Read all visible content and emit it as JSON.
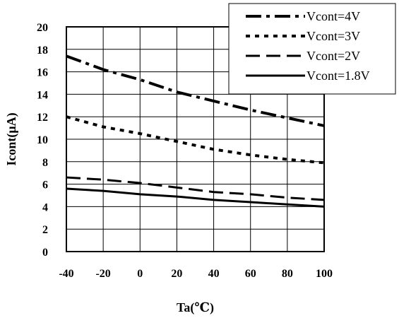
{
  "chart_data": {
    "type": "line",
    "title": "",
    "xlabel": "Ta(℃)",
    "ylabel": "Icont(μA)",
    "xlim": [
      -40,
      100
    ],
    "ylim": [
      0,
      20
    ],
    "xticks": [
      -40,
      -20,
      0,
      20,
      40,
      60,
      80,
      100
    ],
    "yticks": [
      0,
      2,
      4,
      6,
      8,
      10,
      12,
      14,
      16,
      18,
      20
    ],
    "grid": true,
    "legend_position": "top-right",
    "series": [
      {
        "name": "Vcont=4V",
        "style": "dash-dot",
        "x": [
          -40,
          -20,
          0,
          20,
          40,
          60,
          80,
          100
        ],
        "y": [
          17.4,
          16.2,
          15.3,
          14.2,
          13.4,
          12.6,
          11.9,
          11.2
        ]
      },
      {
        "name": "Vcont=3V",
        "style": "dotted",
        "x": [
          -40,
          -20,
          0,
          20,
          40,
          60,
          80,
          100
        ],
        "y": [
          12.0,
          11.1,
          10.5,
          9.8,
          9.1,
          8.6,
          8.2,
          7.9
        ]
      },
      {
        "name": "Vcont=2V",
        "style": "dashed",
        "x": [
          -40,
          -20,
          0,
          20,
          40,
          60,
          80,
          100
        ],
        "y": [
          6.6,
          6.4,
          6.1,
          5.7,
          5.3,
          5.1,
          4.8,
          4.6
        ]
      },
      {
        "name": "Vcont=1.8V",
        "style": "solid",
        "x": [
          -40,
          -20,
          0,
          20,
          40,
          60,
          80,
          100
        ],
        "y": [
          5.6,
          5.4,
          5.1,
          4.9,
          4.6,
          4.4,
          4.2,
          4.0
        ]
      }
    ]
  }
}
